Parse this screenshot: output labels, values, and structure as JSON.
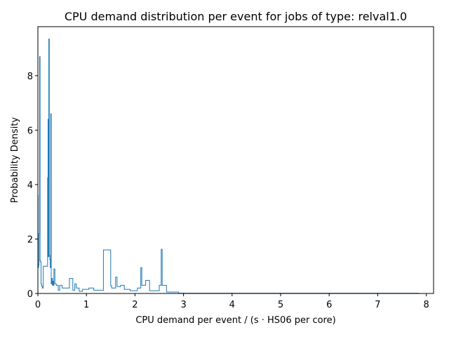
{
  "chart_data": {
    "type": "histogram-step",
    "title": "CPU demand distribution per event for jobs of type: relval1.0",
    "xlabel": "CPU demand per event / (s · HS06 per core)",
    "ylabel": "Probability Density",
    "xlim": [
      0,
      8.15
    ],
    "ylim": [
      0,
      9.8
    ],
    "xticks": [
      0,
      1,
      2,
      3,
      4,
      5,
      6,
      7,
      8
    ],
    "yticks": [
      0,
      2,
      4,
      6,
      8
    ],
    "xtick_labels": [
      "0",
      "1",
      "2",
      "3",
      "4",
      "5",
      "6",
      "7",
      "8"
    ],
    "ytick_labels": [
      "0",
      "2",
      "4",
      "6",
      "8"
    ],
    "line_color": "#1f77b4",
    "series": [
      {
        "name": "relval1.0",
        "x": [
          0,
          0.005,
          0.005,
          0.015,
          0.015,
          0.025,
          0.025,
          0.035,
          0.035,
          0.045,
          0.045,
          0.055,
          0.055,
          0.065,
          0.065,
          0.075,
          0.075,
          0.09,
          0.09,
          0.11,
          0.11,
          0.2,
          0.2,
          0.21,
          0.21,
          0.215,
          0.215,
          0.225,
          0.225,
          0.235,
          0.235,
          0.245,
          0.245,
          0.255,
          0.255,
          0.265,
          0.265,
          0.275,
          0.275,
          0.285,
          0.285,
          0.3,
          0.3,
          0.305,
          0.305,
          0.32,
          0.32,
          0.33,
          0.33,
          0.35,
          0.35,
          0.38,
          0.38,
          0.42,
          0.42,
          0.45,
          0.45,
          0.5,
          0.5,
          0.65,
          0.65,
          0.72,
          0.72,
          0.76,
          0.76,
          0.79,
          0.79,
          0.85,
          0.85,
          0.92,
          0.92,
          1.05,
          1.05,
          1.15,
          1.15,
          1.35,
          1.35,
          1.5,
          1.5,
          1.52,
          1.52,
          1.6,
          1.6,
          1.63,
          1.63,
          1.7,
          1.7,
          1.78,
          1.78,
          1.9,
          1.9,
          2.05,
          2.05,
          2.12,
          2.12,
          2.14,
          2.14,
          2.22,
          2.22,
          2.3,
          2.3,
          2.5,
          2.5,
          2.54,
          2.54,
          2.56,
          2.56,
          2.65,
          2.65,
          2.9,
          2.9,
          7.85,
          7.85
        ],
        "y": [
          3.6,
          3.6,
          0.95,
          0.95,
          1.05,
          1.05,
          2.2,
          2.2,
          8.7,
          8.7,
          1.2,
          1.2,
          1.15,
          1.15,
          0.35,
          0.35,
          0.27,
          0.27,
          0.2,
          0.2,
          1.0,
          1.0,
          4.25,
          4.25,
          6.4,
          6.4,
          1.35,
          1.35,
          9.35,
          9.35,
          1.4,
          1.4,
          1.25,
          1.25,
          0.95,
          0.95,
          6.6,
          6.6,
          0.35,
          0.35,
          0.55,
          0.55,
          0.3,
          0.3,
          0.45,
          0.45,
          0.3,
          0.3,
          0.9,
          0.9,
          0.35,
          0.35,
          0.3,
          0.3,
          0.12,
          0.12,
          0.3,
          0.3,
          0.2,
          0.2,
          0.55,
          0.55,
          0.12,
          0.12,
          0.35,
          0.35,
          0.2,
          0.2,
          0.08,
          0.08,
          0.15,
          0.15,
          0.2,
          0.2,
          0.12,
          0.12,
          1.6,
          1.6,
          0.28,
          0.28,
          0.2,
          0.2,
          0.6,
          0.6,
          0.25,
          0.25,
          0.3,
          0.3,
          0.15,
          0.15,
          0.1,
          0.1,
          0.2,
          0.2,
          0.95,
          0.95,
          0.3,
          0.3,
          0.48,
          0.48,
          0.1,
          0.1,
          0.3,
          0.3,
          1.62,
          1.62,
          0.3,
          0.3,
          0.05,
          0.05,
          0.01,
          0.01,
          0.0
        ]
      }
    ]
  }
}
